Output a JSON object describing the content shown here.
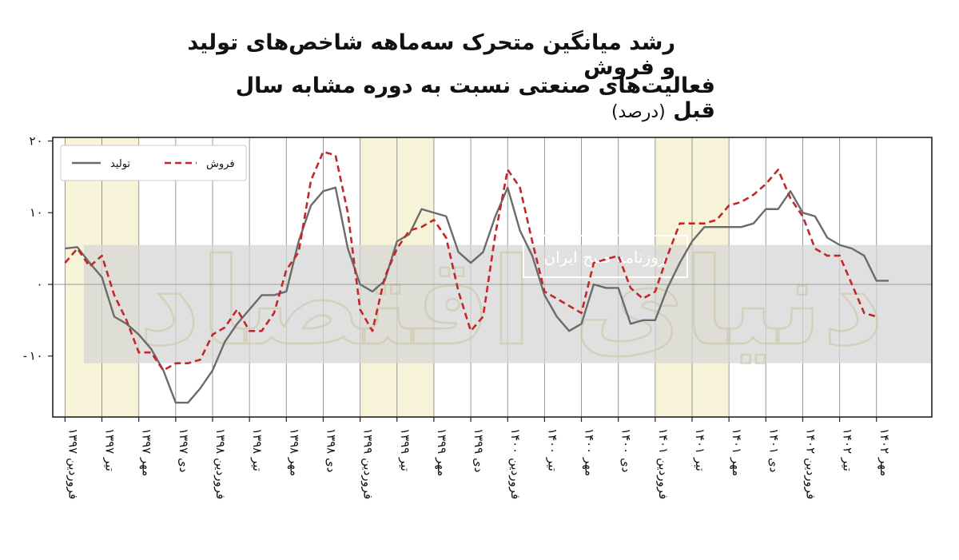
{
  "title": {
    "line1": "رشد میانگین متحرک سه‌ماهه شاخص‌های تولید و فروش",
    "line2": "فعالیت‌های صنعتی نسبت به دوره مشابه سال قبل",
    "unit": "(درصد)"
  },
  "watermark": {
    "text": "روزنامه صبح ایران",
    "logo_text": "دنیای اقتصاد"
  },
  "colors": {
    "production": "#6b6b6b",
    "sales": "#c0282a",
    "shade": "#f7f3d8",
    "band": "#d6d6d6"
  },
  "chart_data": {
    "type": "line",
    "xlabels": [
      "فروردین ۱۳۹۷",
      "تیر ۱۳۹۷",
      "مهر ۱۳۹۷",
      "دی ۱۳۹۷",
      "فروردین ۱۳۹۸",
      "تیر ۱۳۹۸",
      "مهر ۱۳۹۸",
      "دی ۱۳۹۸",
      "فروردین ۱۳۹۹",
      "تیر ۱۳۹۹",
      "مهر ۱۳۹۹",
      "دی ۱۳۹۹",
      "فروردین ۱۴۰۰",
      "تیر ۱۴۰۰",
      "مهر ۱۴۰۰",
      "دی ۱۴۰۰",
      "فروردین ۱۴۰۱",
      "تیر ۱۴۰۱",
      "مهر ۱۴۰۱",
      "دی ۱۴۰۱",
      "فروردین ۱۴۰۲",
      "تیر ۱۴۰۲",
      "مهر ۱۴۰۲"
    ],
    "yticks": [
      20,
      10,
      0,
      -10
    ],
    "ytick_labels": [
      "۲۰",
      "۱۰",
      "۰",
      "-۱۰"
    ],
    "ylim": [
      -18.5,
      20.5
    ],
    "xlim": [
      -1,
      70.5
    ],
    "grid": true,
    "legend_position": "top-left",
    "shaded_ranges": [
      [
        0,
        6
      ],
      [
        24,
        30
      ],
      [
        48,
        54
      ]
    ],
    "series": [
      {
        "name": "تولید",
        "style": "solid",
        "values": [
          5,
          5.2,
          3,
          1,
          -4.5,
          -5.5,
          -7,
          -9,
          -12,
          -16.5,
          -16.5,
          -14.5,
          -12,
          -8,
          -5.5,
          -3.5,
          -1.5,
          -1.5,
          -1,
          6,
          11,
          13,
          13.5,
          5,
          0,
          -1,
          0.5,
          6,
          7,
          10.5,
          10,
          9.5,
          4.5,
          3,
          4.5,
          9.5,
          13.5,
          7.5,
          4,
          -1.5,
          -4.5,
          -6.5,
          -5.5,
          0,
          -0.5,
          -0.5,
          -5.5,
          -5,
          -5,
          -0.5,
          3,
          6,
          8,
          8,
          8,
          8,
          8.5,
          10.5,
          10.5,
          13,
          10,
          9.5,
          6.5,
          5.5,
          5,
          4,
          0.5,
          0.5
        ]
      },
      {
        "name": "فروش",
        "style": "dashed",
        "values": [
          3,
          5,
          2.5,
          4,
          -1.5,
          -5,
          -9.5,
          -9.5,
          -12,
          -11,
          -11,
          -10.5,
          -7,
          -6,
          -3.5,
          -6.5,
          -6.5,
          -4,
          2,
          4.5,
          14.5,
          18.5,
          18,
          10,
          -3.5,
          -6.5,
          1,
          5,
          7.5,
          8,
          9,
          6.5,
          -1,
          -6.5,
          -4.5,
          7,
          16,
          13.5,
          6,
          -1,
          -2,
          -3,
          -4,
          3,
          3.5,
          4,
          -0.5,
          -2,
          -1,
          4,
          8.5,
          8.5,
          8.5,
          9,
          11,
          11.5,
          12.5,
          14,
          16,
          12,
          9.5,
          5,
          4,
          4,
          0,
          -4,
          -4.5
        ]
      }
    ]
  }
}
